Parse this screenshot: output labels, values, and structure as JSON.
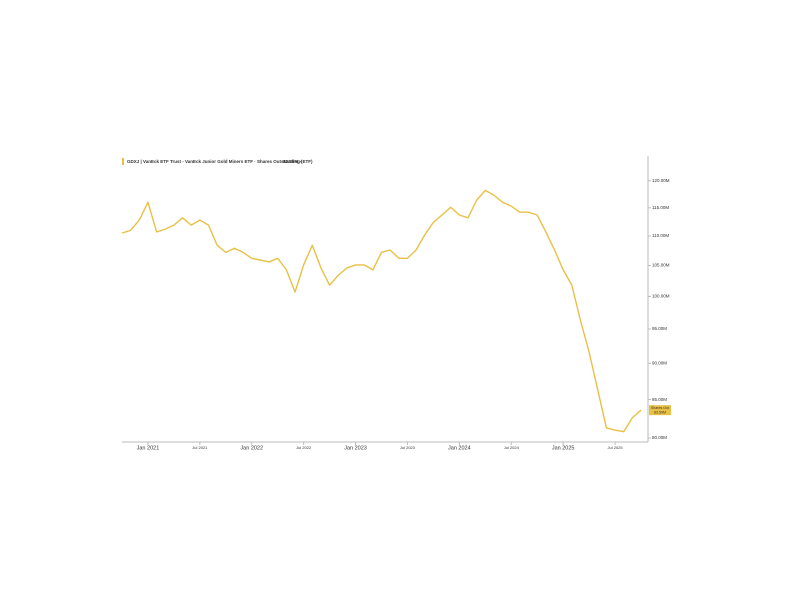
{
  "chart_data": {
    "type": "line",
    "series": [
      {
        "name": "GDXJ | VanEck ETF Trust - VanEck Junior Gold Miners ETF  ·  Shares Outstanding (ETF)",
        "color": "#e9c046",
        "values": [
          110.5,
          111.0,
          112.8,
          116.0,
          110.7,
          111.2,
          111.9,
          113.2,
          111.9,
          112.8,
          111.9,
          108.4,
          107.2,
          107.9,
          107.2,
          106.2,
          105.9,
          105.6,
          106.2,
          104.3,
          100.7,
          105.1,
          108.4,
          104.6,
          101.8,
          103.4,
          104.6,
          105.1,
          105.1,
          104.3,
          107.2,
          107.6,
          106.2,
          106.2,
          107.6,
          110.2,
          112.4,
          113.7,
          115.1,
          113.7,
          113.2,
          116.4,
          118.2,
          117.3,
          116.0,
          115.3,
          114.2,
          114.2,
          113.7,
          110.7,
          107.6,
          104.3,
          101.8,
          96.3,
          91.6,
          86.3,
          81.3,
          81.0,
          80.8,
          82.6,
          83.59
        ]
      }
    ],
    "x": [
      "2020-10",
      "2020-11",
      "2020-12",
      "2021-01",
      "2021-02",
      "2021-03",
      "2021-04",
      "2021-05",
      "2021-06",
      "2021-07",
      "2021-08",
      "2021-09",
      "2021-10",
      "2021-11",
      "2021-12",
      "2022-01",
      "2022-02",
      "2022-03",
      "2022-04",
      "2022-05",
      "2022-06",
      "2022-07",
      "2022-08",
      "2022-09",
      "2022-10",
      "2022-11",
      "2022-12",
      "2023-01",
      "2023-02",
      "2023-03",
      "2023-04",
      "2023-05",
      "2023-06",
      "2023-07",
      "2023-08",
      "2023-09",
      "2023-10",
      "2023-11",
      "2023-12",
      "2024-01",
      "2024-02",
      "2024-03",
      "2024-04",
      "2024-05",
      "2024-06",
      "2024-07",
      "2024-08",
      "2024-09",
      "2024-10",
      "2024-11",
      "2024-12",
      "2025-01",
      "2025-02",
      "2025-03",
      "2025-04",
      "2025-05",
      "2025-06",
      "2025-07",
      "2025-08",
      "2025-09",
      "2025-10"
    ],
    "xlim": [
      "2020-10",
      "2025-10"
    ],
    "xticks": [
      {
        "value": "2021-01",
        "label": "Jan 2021"
      },
      {
        "value": "2021-07",
        "label": "Jul 2021"
      },
      {
        "value": "2022-01",
        "label": "Jan 2022"
      },
      {
        "value": "2022-07",
        "label": "Jul 2022"
      },
      {
        "value": "2023-01",
        "label": "Jan 2023"
      },
      {
        "value": "2023-07",
        "label": "Jul 2023"
      },
      {
        "value": "2024-01",
        "label": "Jan 2024"
      },
      {
        "value": "2024-07",
        "label": "Jul 2024"
      },
      {
        "value": "2025-01",
        "label": "Jan 2025"
      },
      {
        "value": "2025-07",
        "label": "Jul 2025"
      }
    ],
    "ylim": [
      79.5,
      124
    ],
    "yticks": [
      {
        "value": 80,
        "label": "80.00M"
      },
      {
        "value": 85,
        "label": "85.00M"
      },
      {
        "value": 90,
        "label": "90.00M"
      },
      {
        "value": 95,
        "label": "95.00M"
      },
      {
        "value": 100,
        "label": "100.00M"
      },
      {
        "value": 105,
        "label": "105.00M"
      },
      {
        "value": 110,
        "label": "110.00M"
      },
      {
        "value": 115,
        "label": "115.00M"
      },
      {
        "value": 120,
        "label": "120.00M"
      }
    ],
    "log_scale": true,
    "current_label": "Shares Out",
    "current_value_label": "83.59M"
  }
}
